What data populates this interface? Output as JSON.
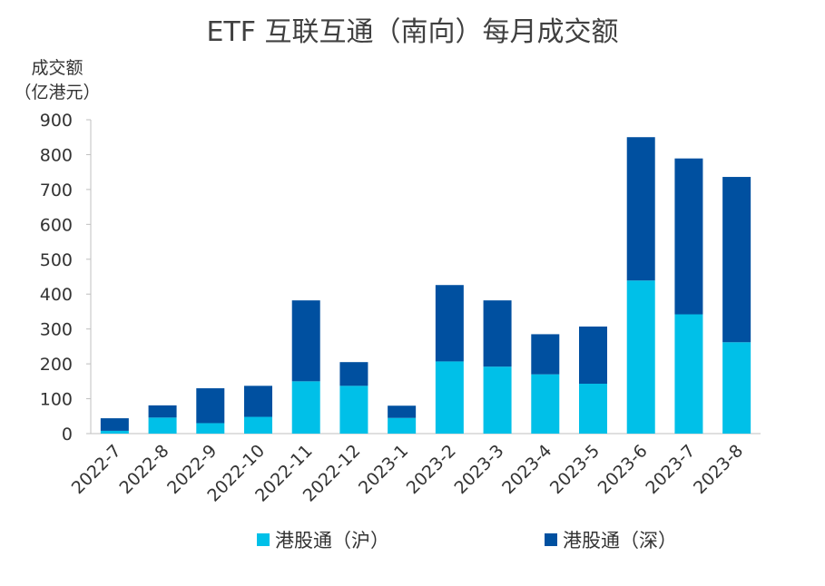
{
  "chart_data": {
    "type": "bar",
    "stacked": true,
    "title": "ETF 互联互通（南向）每月成交额",
    "ylabel_line1": "成交额",
    "ylabel_line2": "（亿港元）",
    "xlabel": "",
    "ylim": [
      0,
      900
    ],
    "yticks": [
      "0",
      "100",
      "200",
      "300",
      "400",
      "500",
      "600",
      "700",
      "800",
      "900"
    ],
    "grid": false,
    "legend_position": "bottom",
    "categories": [
      "2022-7",
      "2022-8",
      "2022-9",
      "2022-10",
      "2022-11",
      "2022-12",
      "2023-1",
      "2023-2",
      "2023-3",
      "2023-4",
      "2023-5",
      "2023-6",
      "2023-7",
      "2023-8"
    ],
    "series": [
      {
        "name": "港股通（沪）",
        "color": "#00C0E8",
        "values": [
          8,
          46,
          30,
          48,
          150,
          137,
          45,
          207,
          192,
          170,
          143,
          439,
          342,
          262
        ]
      },
      {
        "name": "港股通（深）",
        "color": "#0050A0",
        "values": [
          36,
          35,
          100,
          89,
          232,
          68,
          35,
          219,
          190,
          115,
          164,
          411,
          447,
          474
        ]
      }
    ]
  }
}
